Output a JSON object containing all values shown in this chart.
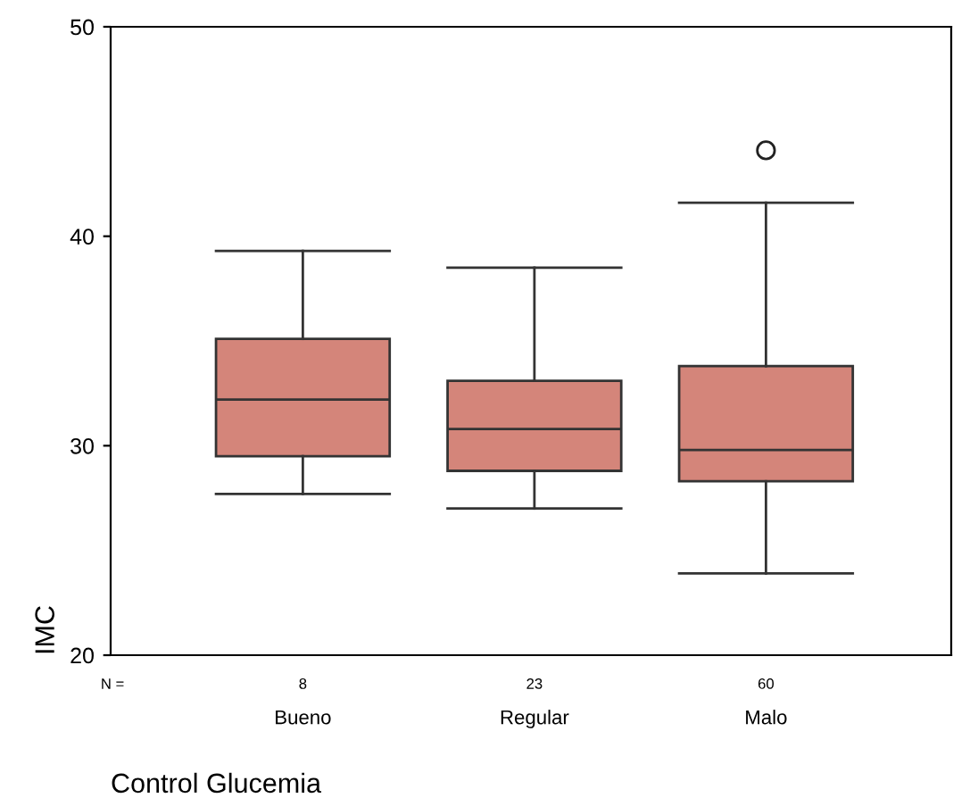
{
  "chart_data": {
    "type": "box",
    "xlabel": "Control Glucemia",
    "ylabel": "IMC",
    "categories": [
      "Bueno",
      "Regular",
      "Malo"
    ],
    "boxes": [
      {
        "low": 27.7,
        "q1": 29.5,
        "median": 32.2,
        "q3": 35.1,
        "high": 39.3
      },
      {
        "low": 27.0,
        "q1": 28.8,
        "median": 30.8,
        "q3": 33.1,
        "high": 38.5
      },
      {
        "low": 23.9,
        "q1": 28.3,
        "median": 29.8,
        "q3": 33.8,
        "high": 41.6,
        "outliers": [
          44.1
        ]
      }
    ],
    "color": "#d4857a",
    "ylim": [
      20,
      50
    ],
    "yticks": [
      20,
      30,
      40,
      50
    ],
    "grid": false,
    "annotations": [
      "N =",
      "8",
      "23",
      "60"
    ]
  }
}
